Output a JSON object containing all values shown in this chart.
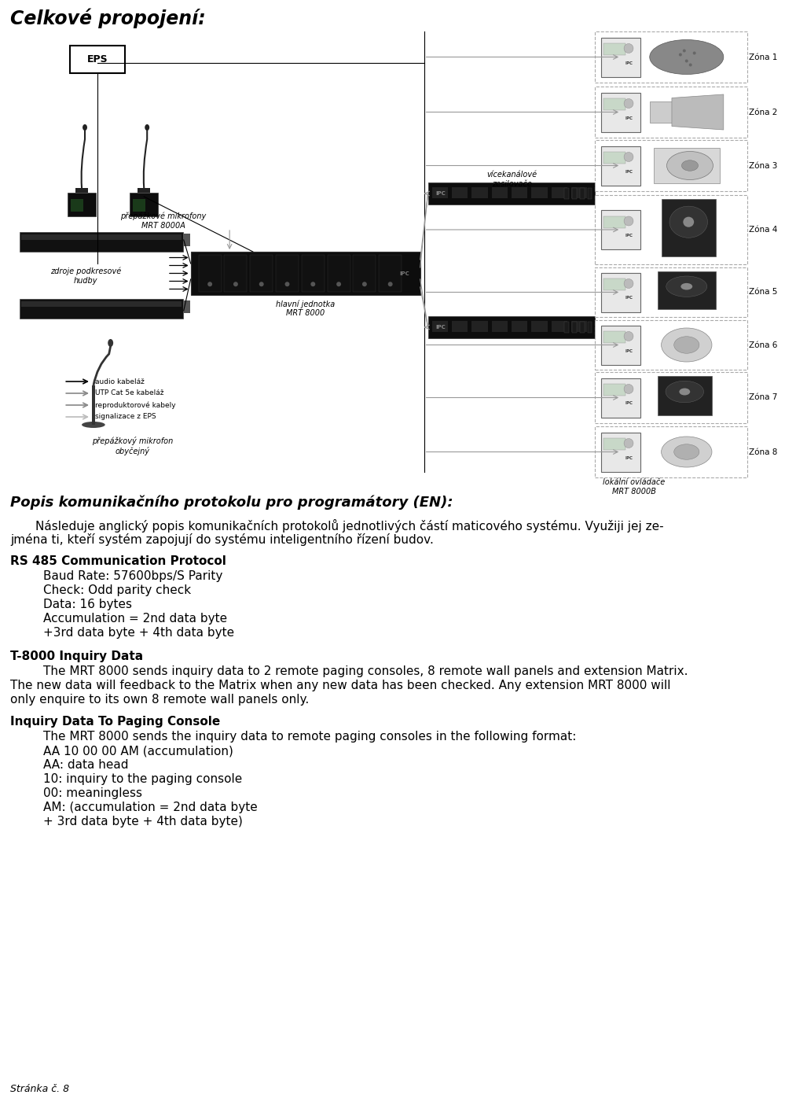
{
  "bg_color": "#ffffff",
  "text_color": "#000000",
  "dark": "#1a1a1a",
  "gray": "#888888",
  "lightgray": "#cccccc",
  "page_title": "Celkové propojení:",
  "section1_heading": "Popis komunikačního protokolu pro programátory (EN):",
  "para1_line1": "Následuje anglický popis komunikačních protokolů jednotlivých částí maticového systému. Využiji jej ze-",
  "para1_line2": "jména ti, kteří systém zapojují do systému inteligentního řízení budov.",
  "rs485_heading": "RS 485 Communication Protocol",
  "rs485_lines": [
    "Baud Rate: 57600bps/S Parity",
    "Check: Odd parity check",
    "Data: 16 bytes",
    "Accumulation = 2nd data byte",
    "+3rd data byte + 4th data byte"
  ],
  "t8000_heading": "T-8000 Inquiry Data",
  "t8000_line1": "    The MRT 8000 sends inquiry data to 2 remote paging consoles, 8 remote wall panels and extension Matrix.",
  "t8000_line2": "The new data will feedback to the Matrix when any new data has been checked. Any extension MRT 8000 will",
  "t8000_line3": "only enquire to its own 8 remote wall panels only.",
  "inquiry_heading": "Inquiry Data To Paging Console",
  "inquiry_line0": "    The MRT 8000 sends the inquiry data to remote paging consoles in the following format:",
  "inquiry_lines": [
    "AA 10 00 00 AM (accumulation)",
    "AA: data head",
    "10: inquiry to the paging console",
    "00: meaningless",
    "AM: (accumulation = 2nd data byte",
    "+ 3rd data byte + 4th data byte)"
  ],
  "footer": "Stránka č. 8",
  "zones": [
    "Zóna 1",
    "Zóna 2",
    "Zóna 3",
    "Zóna 4",
    "Zóna 5",
    "Zóna 6",
    "Zóna 7",
    "Zóna 8"
  ],
  "legend_items": [
    "audio kabeláž",
    "UTP Cat 5e kabeláž",
    "reproduktorové kabely",
    "signalizace z EPS"
  ]
}
